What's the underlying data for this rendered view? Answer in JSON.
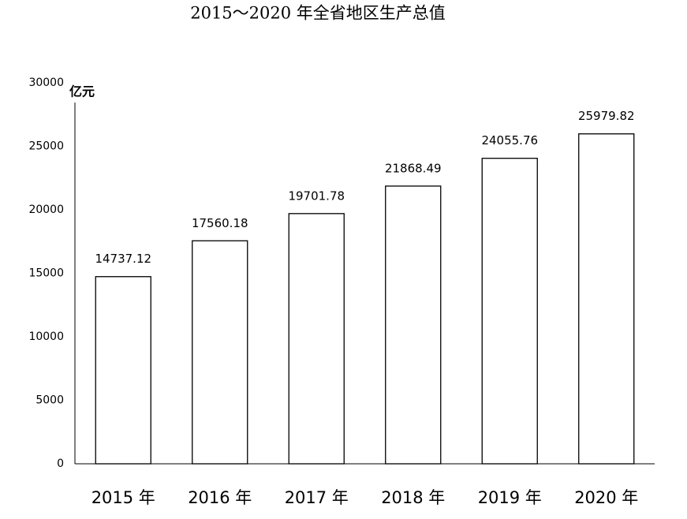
{
  "chart_data": {
    "type": "bar",
    "title": "2015～2020 年全省地区生产总值",
    "y_label": "亿元",
    "categories": [
      "2015 年",
      "2016 年",
      "2017 年",
      "2018 年",
      "2019 年",
      "2020 年"
    ],
    "values": [
      14737.12,
      17560.18,
      19701.78,
      21868.49,
      24055.76,
      25979.82
    ],
    "color": "#ffffff",
    "ylim": [
      0,
      30000
    ],
    "yticks": [
      0,
      5000,
      10000,
      15000,
      20000,
      25000,
      30000
    ],
    "grid": false
  }
}
